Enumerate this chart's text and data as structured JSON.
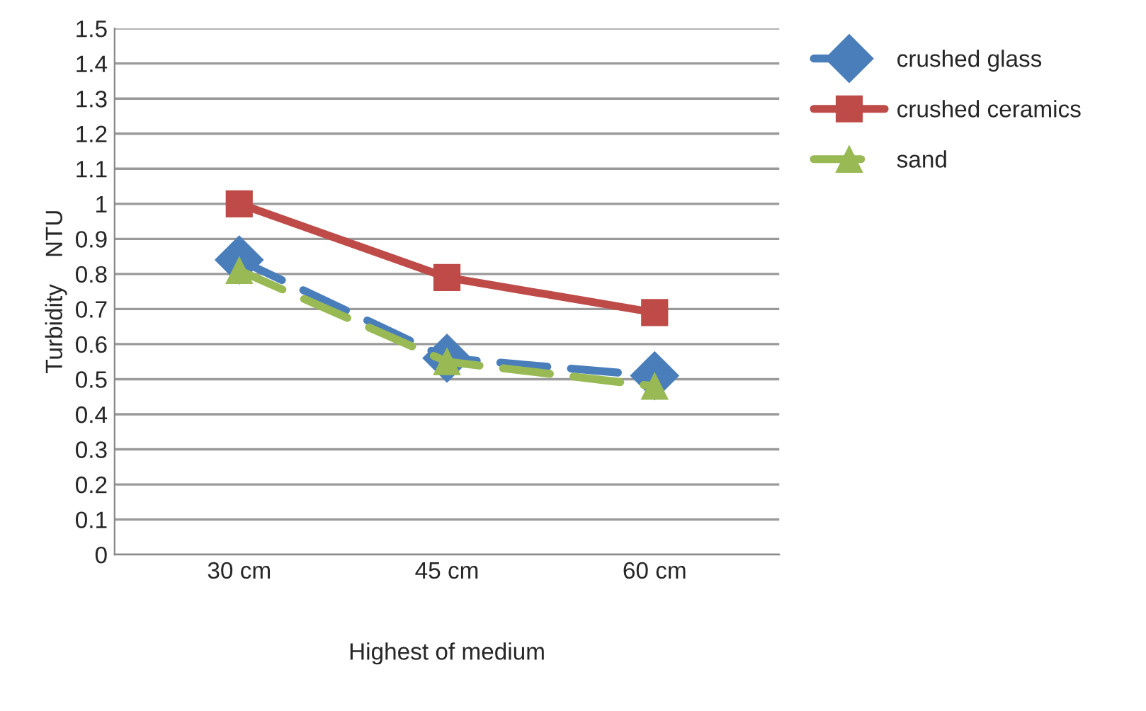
{
  "chart_data": {
    "type": "line",
    "xlabel": "Highest of medium",
    "ylabel": "Turbidity    NTU",
    "categories": [
      "30 cm",
      "45 cm",
      "60 cm"
    ],
    "series": [
      {
        "name": "crushed glass",
        "color": "#4a7ebb",
        "values": [
          0.84,
          0.56,
          0.51
        ],
        "marker": "diamond",
        "line_style": "dashed"
      },
      {
        "name": "crushed ceramics",
        "color": "#be4b48",
        "values": [
          1.0,
          0.79,
          0.69
        ],
        "marker": "square",
        "line_style": "solid"
      },
      {
        "name": "sand",
        "color": "#98b954",
        "values": [
          0.81,
          0.55,
          0.48
        ],
        "marker": "triangle",
        "line_style": "dashed"
      }
    ],
    "ylim": [
      0,
      1.5
    ],
    "yticks": [
      0,
      0.1,
      0.2,
      0.3,
      0.4,
      0.5,
      0.6,
      0.7,
      0.8,
      0.9,
      1,
      1.1,
      1.2,
      1.3,
      1.4,
      1.5
    ],
    "grid": "y",
    "legend": "top right"
  }
}
